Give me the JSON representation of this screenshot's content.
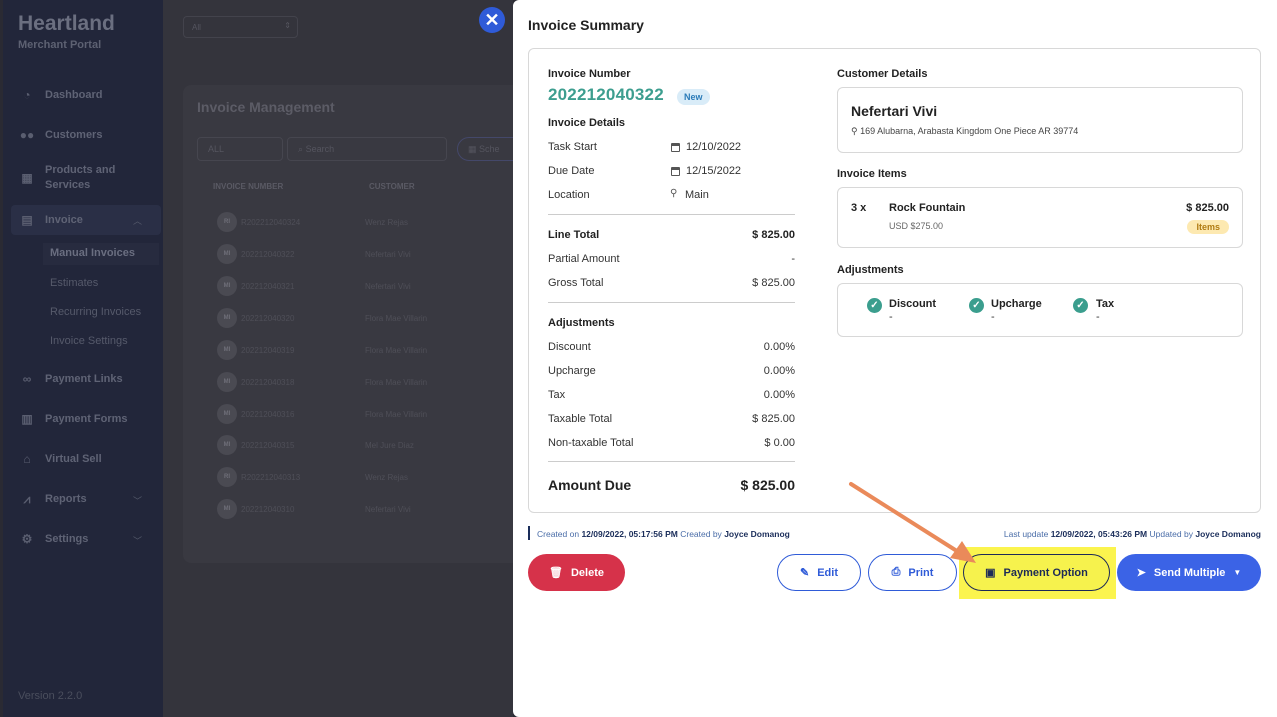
{
  "sidebar": {
    "logo": "Heartland",
    "logo_sub": "Merchant Portal",
    "items": [
      {
        "label": "Dashboard"
      },
      {
        "label": "Customers"
      },
      {
        "label": "Products and"
      },
      {
        "label": "Services"
      },
      {
        "label": "Invoice"
      },
      {
        "label": "Payment Links"
      },
      {
        "label": "Payment Forms"
      },
      {
        "label": "Virtual Sell"
      },
      {
        "label": "Reports"
      },
      {
        "label": "Settings"
      }
    ],
    "sub_items": [
      {
        "label": "Manual Invoices"
      },
      {
        "label": "Estimates"
      },
      {
        "label": "Recurring Invoices"
      },
      {
        "label": "Invoice Settings"
      }
    ],
    "version": "Version 2.2.0"
  },
  "background": {
    "top_select": "All",
    "panel_title": "Invoice Management",
    "filter_all": "ALL",
    "search_placeholder": "Search",
    "schedule_label": "Sche",
    "col_invoice_number": "INVOICE NUMBER",
    "col_customer": "CUSTOMER",
    "rows": [
      {
        "av": "RI",
        "num": "R202212040324",
        "customer": "Wenz Rejas"
      },
      {
        "av": "MI",
        "num": "202212040322",
        "customer": "Nefertari Vivi"
      },
      {
        "av": "MI",
        "num": "202212040321",
        "customer": "Nefertari Vivi"
      },
      {
        "av": "MI",
        "num": "202212040320",
        "customer": "Flora Mae Villarin"
      },
      {
        "av": "MI",
        "num": "202212040319",
        "customer": "Flora Mae Villarin"
      },
      {
        "av": "MI",
        "num": "202212040318",
        "customer": "Flora Mae Villarin"
      },
      {
        "av": "MI",
        "num": "202212040316",
        "customer": "Flora Mae Villarin"
      },
      {
        "av": "MI",
        "num": "202212040315",
        "customer": "Mel Jure Diaz"
      },
      {
        "av": "RI",
        "num": "R202212040313",
        "customer": "Wenz Rejas"
      },
      {
        "av": "MI",
        "num": "202212040310",
        "customer": "Nefertari Vivi"
      }
    ]
  },
  "modal": {
    "title": "Invoice Summary",
    "invoice_number_label": "Invoice Number",
    "invoice_number": "202212040322",
    "status_badge": "New",
    "invoice_details_label": "Invoice Details",
    "task_start_label": "Task Start",
    "task_start": "12/10/2022",
    "due_date_label": "Due Date",
    "due_date": "12/15/2022",
    "location_label": "Location",
    "location": "Main",
    "line_total_label": "Line Total",
    "line_total": "$ 825.00",
    "partial_amount_label": "Partial Amount",
    "partial_amount": "-",
    "gross_total_label": "Gross Total",
    "gross_total": "$ 825.00",
    "adjustments_label": "Adjustments",
    "discount_label": "Discount",
    "discount": "0.00%",
    "upcharge_label": "Upcharge",
    "upcharge": "0.00%",
    "tax_label": "Tax",
    "tax": "0.00%",
    "taxable_total_label": "Taxable Total",
    "taxable_total": "$ 825.00",
    "nontaxable_total_label": "Non-taxable Total",
    "nontaxable_total": "$ 0.00",
    "amount_due_label": "Amount Due",
    "amount_due": "$ 825.00",
    "customer_details_label": "Customer Details",
    "customer_name": "Nefertari Vivi",
    "customer_address": "169 Alubarna, Arabasta Kingdom One Piece AR 39774",
    "invoice_items_label": "Invoice Items",
    "item_qty": "3 x",
    "item_name": "Rock Fountain",
    "item_unit_price": "USD $275.00",
    "item_total": "$ 825.00",
    "item_badge": "Items",
    "adj_box_label": "Adjustments",
    "adj_discount": "Discount",
    "adj_discount_val": "-",
    "adj_upcharge": "Upcharge",
    "adj_upcharge_val": "-",
    "adj_tax": "Tax",
    "adj_tax_val": "-",
    "created_prefix": "Created on",
    "created_on": "12/09/2022, 05:17:56 PM",
    "created_by_prefix": "Created by",
    "created_by": "Joyce Domanog",
    "updated_prefix": "Last update",
    "updated_on": "12/09/2022, 05:43:26 PM",
    "updated_by_prefix": "Updated by",
    "updated_by": "Joyce Domanog",
    "buttons": {
      "delete": "Delete",
      "edit": "Edit",
      "print": "Print",
      "payment_option": "Payment Option",
      "send_multiple": "Send Multiple"
    }
  },
  "colors": {
    "accent_blue": "#3b63e6",
    "invoice_number_teal": "#3d9e8f",
    "delete_red": "#d6324a",
    "highlight_yellow": "#fbf44e",
    "arrow_orange": "#ea8a5a"
  }
}
